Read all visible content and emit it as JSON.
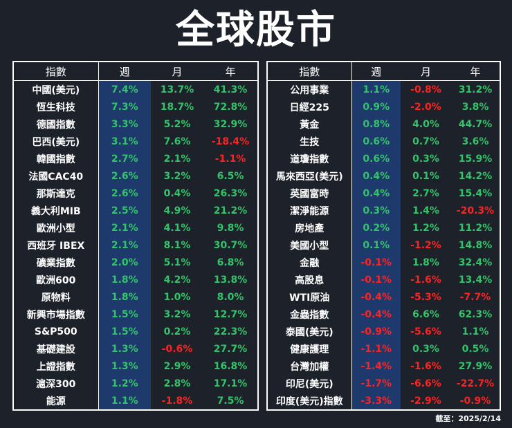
{
  "title": "全球股市",
  "colors": {
    "background": "#1d2129",
    "positive": "#33c46a",
    "negative": "#ff2222",
    "week_column": "#1e3a6d"
  },
  "headers": {
    "name": "指數",
    "week": "週",
    "month": "月",
    "year": "年"
  },
  "left_rows": [
    {
      "name": "中國(美元)",
      "week": "7.4%",
      "month": "13.7%",
      "year": "41.3%"
    },
    {
      "name": "恆生科技",
      "week": "7.3%",
      "month": "18.7%",
      "year": "72.8%"
    },
    {
      "name": "德國指數",
      "week": "3.3%",
      "month": "5.2%",
      "year": "32.9%"
    },
    {
      "name": "巴西(美元)",
      "week": "3.1%",
      "month": "7.6%",
      "year": "-18.4%"
    },
    {
      "name": "韓國指數",
      "week": "2.7%",
      "month": "2.1%",
      "year": "-1.1%"
    },
    {
      "name": "法國CAC40",
      "week": "2.6%",
      "month": "3.2%",
      "year": "6.5%"
    },
    {
      "name": "那斯達克",
      "week": "2.6%",
      "month": "0.4%",
      "year": "26.3%"
    },
    {
      "name": "義大利MIB",
      "week": "2.5%",
      "month": "4.9%",
      "year": "21.2%"
    },
    {
      "name": "歐洲小型",
      "week": "2.1%",
      "month": "4.1%",
      "year": "9.8%"
    },
    {
      "name": "西班牙 IBEX",
      "week": "2.1%",
      "month": "8.1%",
      "year": "30.7%"
    },
    {
      "name": "礦業指數",
      "week": "2.0%",
      "month": "5.1%",
      "year": "6.8%"
    },
    {
      "name": "歐洲600",
      "week": "1.8%",
      "month": "4.2%",
      "year": "13.8%"
    },
    {
      "name": "原物料",
      "week": "1.8%",
      "month": "1.0%",
      "year": "8.0%"
    },
    {
      "name": "新興市場指數",
      "week": "1.5%",
      "month": "3.2%",
      "year": "12.7%"
    },
    {
      "name": "S&P500",
      "week": "1.5%",
      "month": "0.2%",
      "year": "22.3%"
    },
    {
      "name": "基礎建設",
      "week": "1.3%",
      "month": "-0.6%",
      "year": "27.7%"
    },
    {
      "name": "上證指數",
      "week": "1.3%",
      "month": "2.9%",
      "year": "16.8%"
    },
    {
      "name": "滬深300",
      "week": "1.2%",
      "month": "2.8%",
      "year": "17.1%"
    },
    {
      "name": "能源",
      "week": "1.1%",
      "month": "-1.8%",
      "year": "7.5%"
    }
  ],
  "right_rows": [
    {
      "name": "公用事業",
      "week": "1.1%",
      "month": "-0.8%",
      "year": "31.2%"
    },
    {
      "name": "日經225",
      "week": "0.9%",
      "month": "-2.0%",
      "year": "3.8%"
    },
    {
      "name": "黃金",
      "week": "0.8%",
      "month": "4.0%",
      "year": "44.7%"
    },
    {
      "name": "生技",
      "week": "0.6%",
      "month": "0.7%",
      "year": "3.6%"
    },
    {
      "name": "道瓊指數",
      "week": "0.6%",
      "month": "0.3%",
      "year": "15.9%"
    },
    {
      "name": "馬來西亞(美元)",
      "week": "0.4%",
      "month": "0.1%",
      "year": "14.2%"
    },
    {
      "name": "英國富時",
      "week": "0.4%",
      "month": "2.7%",
      "year": "15.4%"
    },
    {
      "name": "潔淨能源",
      "week": "0.3%",
      "month": "1.4%",
      "year": "-20.3%"
    },
    {
      "name": "房地產",
      "week": "0.2%",
      "month": "1.2%",
      "year": "11.2%"
    },
    {
      "name": "美國小型",
      "week": "0.1%",
      "month": "-1.2%",
      "year": "14.8%"
    },
    {
      "name": "金融",
      "week": "-0.1%",
      "month": "1.8%",
      "year": "32.4%"
    },
    {
      "name": "高股息",
      "week": "-0.1%",
      "month": "-1.6%",
      "year": "13.4%"
    },
    {
      "name": "WTI原油",
      "week": "-0.4%",
      "month": "-5.3%",
      "year": "-7.7%"
    },
    {
      "name": "金蟲指數",
      "week": "-0.4%",
      "month": "6.6%",
      "year": "62.3%"
    },
    {
      "name": "泰國(美元)",
      "week": "-0.9%",
      "month": "-5.6%",
      "year": "1.1%"
    },
    {
      "name": "健康護理",
      "week": "-1.1%",
      "month": "0.3%",
      "year": "0.5%"
    },
    {
      "name": "台灣加權",
      "week": "-1.4%",
      "month": "-1.6%",
      "year": "27.9%"
    },
    {
      "name": "印尼(美元)",
      "week": "-1.7%",
      "month": "-6.6%",
      "year": "-22.7%"
    },
    {
      "name": "印度(美元)指數",
      "week": "-3.3%",
      "month": "-2.9%",
      "year": "-0.9%"
    }
  ],
  "footer": "截至：2025/2/14"
}
